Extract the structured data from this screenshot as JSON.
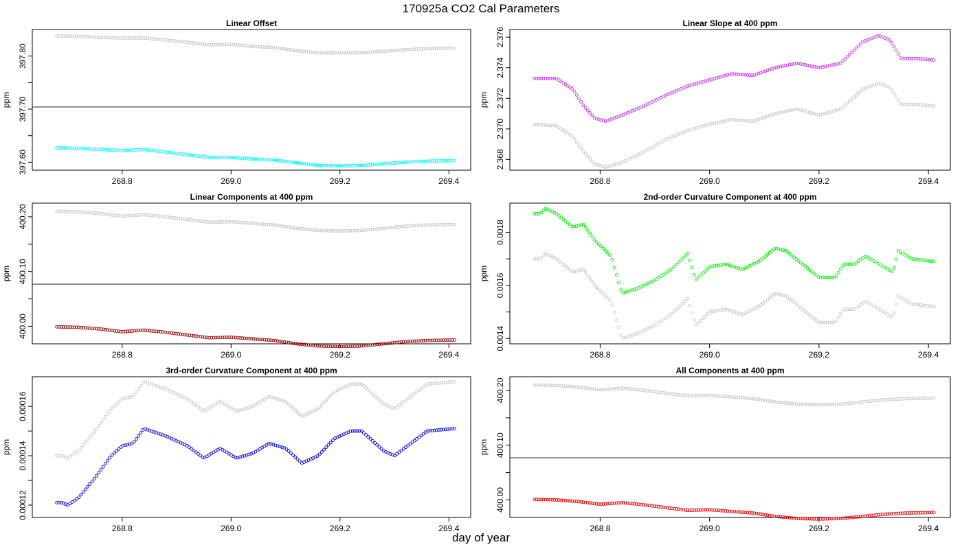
{
  "figure": {
    "title": "170925a   CO2 Cal Parameters",
    "xlabel": "day of year"
  },
  "chart_data": [
    {
      "type": "scatter",
      "title": "Linear Offset",
      "xlabel": "",
      "ylabel": "ppm",
      "xlim": [
        268.635,
        269.44
      ],
      "ylim": [
        397.585,
        397.85
      ],
      "xticks": [
        "268.8",
        "269.0",
        "269.2",
        "269.4"
      ],
      "yticks": [
        "397.60",
        "397.70",
        "397.80"
      ],
      "minor_yticks": [
        397.65,
        397.75
      ],
      "hline": 397.704,
      "series": [
        {
          "color": "#c8c8c8",
          "x": [
            268.68,
            268.72,
            268.76,
            268.8,
            268.84,
            268.88,
            268.92,
            268.96,
            269.0,
            269.04,
            269.08,
            269.12,
            269.16,
            269.2,
            269.24,
            269.28,
            269.32,
            269.36,
            269.41
          ],
          "y": [
            397.838,
            397.837,
            397.835,
            397.834,
            397.834,
            397.83,
            397.826,
            397.821,
            397.822,
            397.818,
            397.816,
            397.81,
            397.806,
            397.806,
            397.806,
            397.809,
            397.812,
            397.814,
            397.815
          ]
        },
        {
          "color": "#00ffff",
          "x": [
            268.68,
            268.72,
            268.76,
            268.8,
            268.84,
            268.88,
            268.92,
            268.96,
            269.0,
            269.04,
            269.08,
            269.12,
            269.16,
            269.2,
            269.24,
            269.28,
            269.32,
            269.36,
            269.41
          ],
          "y": [
            397.627,
            397.626,
            397.624,
            397.622,
            397.624,
            397.619,
            397.614,
            397.609,
            397.609,
            397.606,
            397.604,
            397.599,
            397.594,
            397.593,
            397.594,
            397.597,
            397.6,
            397.602,
            397.603
          ]
        }
      ]
    },
    {
      "type": "scatter",
      "title": "Linear Slope at 400 ppm",
      "xlabel": "",
      "ylabel": "ppm",
      "xlim": [
        268.635,
        269.44
      ],
      "ylim": [
        2.3673,
        2.3765
      ],
      "xticks": [
        "268.8",
        "269.0",
        "269.2",
        "269.4"
      ],
      "yticks": [
        "2.368",
        "2.370",
        "2.372",
        "2.374",
        "2.376"
      ],
      "minor_yticks": [],
      "hline": null,
      "series": [
        {
          "color": "#c8c8c8",
          "x": [
            268.68,
            268.72,
            268.75,
            268.77,
            268.79,
            268.81,
            268.84,
            268.88,
            268.92,
            268.96,
            269.0,
            269.04,
            269.08,
            269.12,
            269.16,
            269.2,
            269.24,
            269.28,
            269.31,
            269.33,
            269.35,
            269.38,
            269.41
          ],
          "y": [
            2.3703,
            2.3702,
            2.3695,
            2.3685,
            2.3677,
            2.3675,
            2.3678,
            2.3685,
            2.3693,
            2.3699,
            2.3703,
            2.3706,
            2.3705,
            2.371,
            2.3713,
            2.3709,
            2.3713,
            2.3726,
            2.373,
            2.3727,
            2.3716,
            2.3716,
            2.3715
          ]
        },
        {
          "color": "#cc33ff",
          "x": [
            268.68,
            268.72,
            268.75,
            268.77,
            268.79,
            268.81,
            268.84,
            268.88,
            268.92,
            268.96,
            269.0,
            269.04,
            269.08,
            269.12,
            269.16,
            269.2,
            269.24,
            269.28,
            269.31,
            269.33,
            269.35,
            269.38,
            269.41
          ],
          "y": [
            2.3733,
            2.3733,
            2.3726,
            2.3715,
            2.3707,
            2.3705,
            2.3709,
            2.3715,
            2.3722,
            2.3728,
            2.3732,
            2.3736,
            2.3735,
            2.374,
            2.3743,
            2.374,
            2.3743,
            2.3757,
            2.3761,
            2.3758,
            2.3746,
            2.3746,
            2.3745
          ]
        }
      ]
    },
    {
      "type": "scatter",
      "title": "Linear Components at 400 ppm",
      "xlabel": "",
      "ylabel": "ppm",
      "xlim": [
        268.635,
        269.44
      ],
      "ylim": [
        399.968,
        400.225
      ],
      "xticks": [
        "268.8",
        "269.0",
        "269.2",
        "269.4"
      ],
      "yticks": [
        "400.00",
        "400.10",
        "400.20"
      ],
      "minor_yticks": [
        400.05,
        400.15
      ],
      "hline": 400.077,
      "series": [
        {
          "color": "#c8c8c8",
          "x": [
            268.68,
            268.72,
            268.76,
            268.8,
            268.84,
            268.88,
            268.92,
            268.96,
            269.0,
            269.04,
            269.08,
            269.12,
            269.16,
            269.2,
            269.24,
            269.28,
            269.32,
            269.36,
            269.41
          ],
          "y": [
            400.21,
            400.209,
            400.206,
            400.201,
            400.204,
            400.2,
            400.195,
            400.19,
            400.191,
            400.188,
            400.185,
            400.179,
            400.175,
            400.174,
            400.175,
            400.179,
            400.183,
            400.185,
            400.186
          ]
        },
        {
          "color": "#990000",
          "x": [
            268.68,
            268.72,
            268.76,
            268.8,
            268.84,
            268.88,
            268.92,
            268.96,
            269.0,
            269.04,
            269.08,
            269.12,
            269.16,
            269.2,
            269.24,
            269.28,
            269.32,
            269.36,
            269.41
          ],
          "y": [
            399.999,
            399.998,
            399.995,
            399.99,
            399.993,
            399.989,
            399.984,
            399.979,
            399.98,
            399.977,
            399.974,
            399.968,
            399.964,
            399.963,
            399.964,
            399.968,
            399.972,
            399.974,
            399.975
          ]
        }
      ]
    },
    {
      "type": "scatter",
      "title": "2nd-order Curvature Component at 400 ppm",
      "xlabel": "",
      "ylabel": "ppm",
      "xlim": [
        268.635,
        269.44
      ],
      "ylim": [
        0.00138,
        0.00191
      ],
      "xticks": [
        "268.8",
        "269.0",
        "269.2",
        "269.4"
      ],
      "yticks": [
        "0.0014",
        "0.0016",
        "0.0018"
      ],
      "minor_yticks": [
        0.0015,
        0.0017
      ],
      "hline": null,
      "series": [
        {
          "color": "#c8c8c8",
          "x": [
            268.68,
            268.69,
            268.7,
            268.72,
            268.75,
            268.77,
            268.79,
            268.81,
            268.82,
            268.84,
            268.87,
            268.9,
            268.93,
            268.96,
            268.975,
            269.0,
            269.03,
            269.06,
            269.09,
            269.12,
            269.14,
            269.17,
            269.2,
            269.23,
            269.245,
            269.265,
            269.285,
            269.31,
            269.335,
            269.345,
            269.37,
            269.41
          ],
          "y": [
            0.0017,
            0.0017,
            0.00172,
            0.0017,
            0.00165,
            0.00166,
            0.0016,
            0.00156,
            0.00154,
            0.0014,
            0.00142,
            0.00145,
            0.00149,
            0.00155,
            0.00145,
            0.0015,
            0.00151,
            0.00149,
            0.00152,
            0.00157,
            0.00156,
            0.00151,
            0.00146,
            0.00146,
            0.00151,
            0.00151,
            0.00154,
            0.00151,
            0.00148,
            0.00156,
            0.00153,
            0.00152
          ]
        },
        {
          "color": "#00ee00",
          "x": [
            268.68,
            268.69,
            268.7,
            268.72,
            268.75,
            268.77,
            268.79,
            268.81,
            268.82,
            268.84,
            268.87,
            268.9,
            268.93,
            268.96,
            268.975,
            269.0,
            269.03,
            269.06,
            269.09,
            269.12,
            269.14,
            269.17,
            269.2,
            269.23,
            269.245,
            269.265,
            269.285,
            269.31,
            269.335,
            269.345,
            269.37,
            269.41
          ],
          "y": [
            0.00187,
            0.00187,
            0.00189,
            0.00187,
            0.00182,
            0.00183,
            0.00177,
            0.00173,
            0.00171,
            0.00157,
            0.00159,
            0.00162,
            0.00166,
            0.00172,
            0.00162,
            0.00167,
            0.00168,
            0.00166,
            0.00169,
            0.00174,
            0.00173,
            0.00168,
            0.00163,
            0.00163,
            0.00168,
            0.00168,
            0.00171,
            0.00168,
            0.00165,
            0.00173,
            0.0017,
            0.00169
          ]
        }
      ]
    },
    {
      "type": "scatter",
      "title": "3rd-order Curvature Component at 400 ppm",
      "xlabel": "",
      "ylabel": "ppm",
      "xlim": [
        268.635,
        269.44
      ],
      "ylim": [
        0.000115,
        0.000172
      ],
      "xticks": [
        "268.8",
        "269.0",
        "269.2",
        "269.4"
      ],
      "yticks": [
        "0.00012",
        "0.00014",
        "0.00016"
      ],
      "minor_yticks": [
        0.00013,
        0.00015
      ],
      "hline": null,
      "series": [
        {
          "color": "#c8c8c8",
          "x": [
            268.68,
            268.69,
            268.7,
            268.72,
            268.75,
            268.78,
            268.8,
            268.82,
            268.84,
            268.88,
            268.92,
            268.95,
            268.98,
            269.01,
            269.04,
            269.07,
            269.1,
            269.13,
            269.16,
            269.19,
            269.22,
            269.24,
            269.26,
            269.28,
            269.3,
            269.33,
            269.36,
            269.41
          ],
          "y": [
            0.00014,
            0.00014,
            0.000139,
            0.000142,
            0.00015,
            0.000159,
            0.000163,
            0.000164,
            0.00017,
            0.000167,
            0.000163,
            0.000158,
            0.000162,
            0.000158,
            0.00016,
            0.000164,
            0.000162,
            0.000156,
            0.000159,
            0.000166,
            0.000169,
            0.000169,
            0.000165,
            0.000161,
            0.000159,
            0.000164,
            0.000169,
            0.00017
          ]
        },
        {
          "color": "#0000ee",
          "x": [
            268.68,
            268.69,
            268.7,
            268.72,
            268.75,
            268.78,
            268.8,
            268.82,
            268.84,
            268.88,
            268.92,
            268.95,
            268.98,
            269.01,
            269.04,
            269.07,
            269.1,
            269.13,
            269.16,
            269.19,
            269.22,
            269.24,
            269.26,
            269.28,
            269.3,
            269.33,
            269.36,
            269.41
          ],
          "y": [
            0.000121,
            0.000121,
            0.00012,
            0.000123,
            0.000131,
            0.00014,
            0.000144,
            0.000145,
            0.000151,
            0.000148,
            0.000144,
            0.000139,
            0.000143,
            0.000139,
            0.000141,
            0.000145,
            0.000143,
            0.000137,
            0.00014,
            0.000147,
            0.00015,
            0.00015,
            0.000146,
            0.000142,
            0.00014,
            0.000145,
            0.00015,
            0.000151
          ]
        }
      ]
    },
    {
      "type": "scatter",
      "title": "All Components at 400 ppm",
      "xlabel": "",
      "ylabel": "ppm",
      "xlim": [
        268.635,
        269.44
      ],
      "ylim": [
        399.968,
        400.225
      ],
      "xticks": [
        "268.8",
        "269.0",
        "269.2",
        "269.4"
      ],
      "yticks": [
        "400.00",
        "400.10",
        "400.20"
      ],
      "minor_yticks": [
        400.05,
        400.15
      ],
      "hline": 400.077,
      "series": [
        {
          "color": "#c8c8c8",
          "x": [
            268.68,
            268.72,
            268.76,
            268.8,
            268.84,
            268.88,
            268.92,
            268.96,
            269.0,
            269.04,
            269.08,
            269.12,
            269.16,
            269.2,
            269.24,
            269.28,
            269.32,
            269.36,
            269.41
          ],
          "y": [
            400.21,
            400.209,
            400.206,
            400.201,
            400.204,
            400.2,
            400.195,
            400.19,
            400.191,
            400.188,
            400.185,
            400.179,
            400.175,
            400.174,
            400.175,
            400.179,
            400.183,
            400.185,
            400.186
          ]
        },
        {
          "color": "#ee0000",
          "x": [
            268.68,
            268.72,
            268.76,
            268.8,
            268.84,
            268.88,
            268.92,
            268.96,
            269.0,
            269.04,
            269.08,
            269.12,
            269.16,
            269.2,
            269.24,
            269.28,
            269.32,
            269.36,
            269.41
          ],
          "y": [
            400.001,
            400.0,
            399.997,
            399.992,
            399.995,
            399.991,
            399.986,
            399.981,
            399.982,
            399.979,
            399.976,
            399.97,
            399.966,
            399.965,
            399.966,
            399.97,
            399.974,
            399.976,
            399.977
          ]
        }
      ]
    }
  ]
}
